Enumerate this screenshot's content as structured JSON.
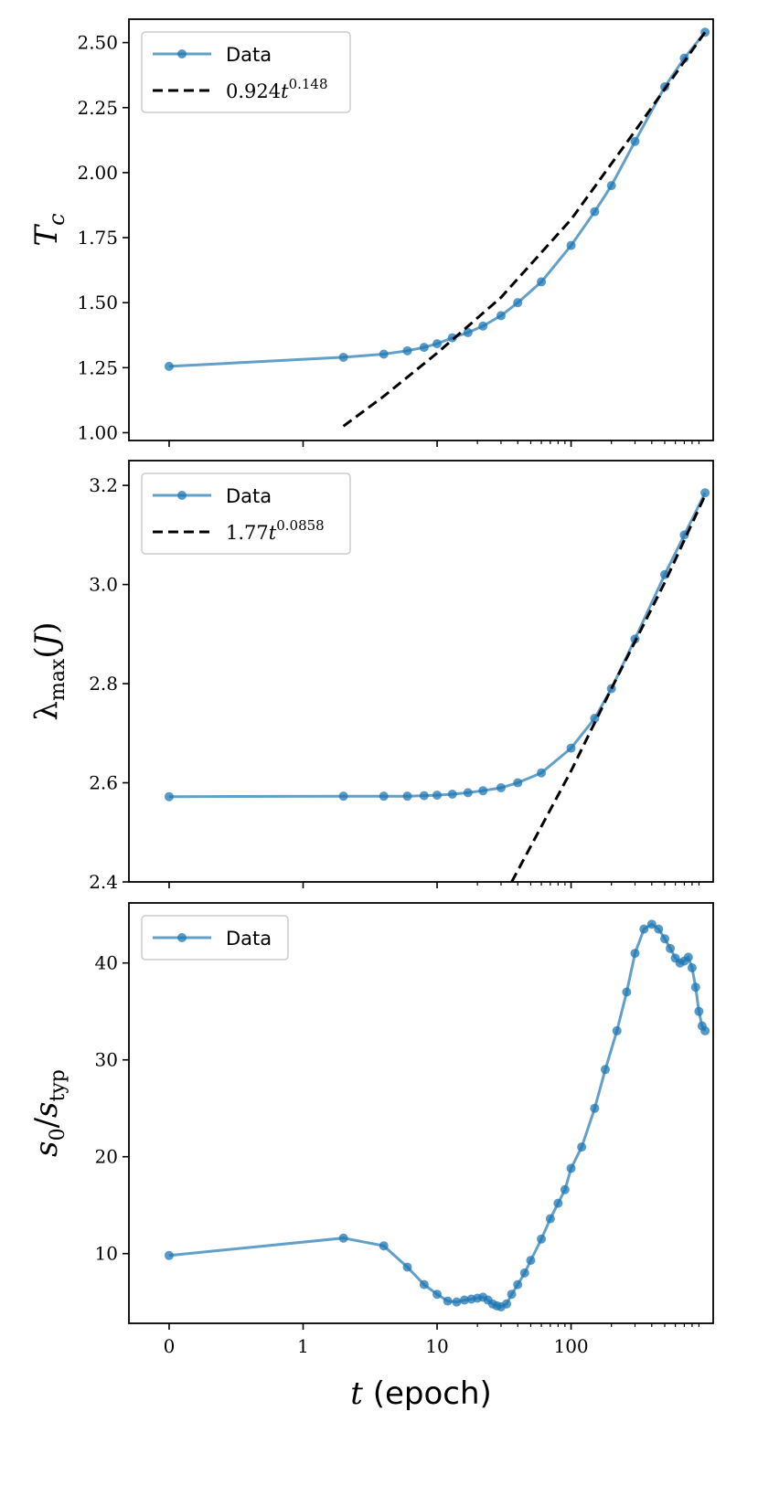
{
  "chart_data": [
    {
      "type": "line",
      "ylabel": "T_c",
      "yticks": [
        "1.00",
        "1.25",
        "1.50",
        "1.75",
        "2.00",
        "2.25",
        "2.50"
      ],
      "ytick_values": [
        1.0,
        1.25,
        1.5,
        1.75,
        2.0,
        2.25,
        2.5
      ],
      "ylim": [
        0.97,
        2.59
      ],
      "legend": {
        "placement": "top-left",
        "data_label": "Data",
        "fit_label": "0.924t^0.148",
        "fit_coef": "0.924",
        "fit_exp": "0.148"
      },
      "series": [
        {
          "name": "Data",
          "x": [
            0,
            2,
            4,
            6,
            8,
            10,
            13,
            17,
            22,
            30,
            40,
            60,
            100,
            150,
            200,
            300,
            500,
            700,
            1000
          ],
          "y": [
            1.255,
            1.29,
            1.302,
            1.315,
            1.328,
            1.342,
            1.365,
            1.385,
            1.41,
            1.45,
            1.5,
            1.58,
            1.72,
            1.85,
            1.95,
            2.12,
            2.33,
            2.44,
            2.54
          ]
        },
        {
          "name": "fit",
          "style": "dashed",
          "x": [
            2,
            4,
            10,
            30,
            100,
            300,
            1000
          ],
          "y": [
            1.025,
            1.14,
            1.306,
            1.52,
            1.82,
            2.16,
            2.54
          ]
        }
      ]
    },
    {
      "type": "line",
      "ylabel": "λ_max(J)",
      "yticks": [
        "2.4",
        "2.6",
        "2.8",
        "3.0",
        "3.2"
      ],
      "ytick_values": [
        2.4,
        2.6,
        2.8,
        3.0,
        3.2
      ],
      "ylim": [
        2.4,
        3.25
      ],
      "legend": {
        "placement": "top-left",
        "data_label": "Data",
        "fit_label": "1.77t^0.0858",
        "fit_coef": "1.77",
        "fit_exp": "0.0858"
      },
      "series": [
        {
          "name": "Data",
          "x": [
            0,
            2,
            4,
            6,
            8,
            10,
            13,
            17,
            22,
            30,
            40,
            60,
            100,
            150,
            200,
            300,
            500,
            700,
            1000
          ],
          "y": [
            2.572,
            2.573,
            2.573,
            2.573,
            2.574,
            2.575,
            2.577,
            2.58,
            2.584,
            2.59,
            2.6,
            2.62,
            2.67,
            2.73,
            2.79,
            2.89,
            3.02,
            3.1,
            3.185
          ]
        },
        {
          "name": "fit",
          "style": "dashed",
          "x": [
            36,
            100,
            200,
            500,
            1000
          ],
          "y": [
            2.4,
            2.624,
            2.79,
            3.004,
            3.18
          ]
        }
      ]
    },
    {
      "type": "line",
      "ylabel": "s_0/s_typ",
      "yticks": [
        "10",
        "20",
        "30",
        "40"
      ],
      "ytick_values": [
        10,
        20,
        30,
        40
      ],
      "ylim": [
        2.8,
        46.2
      ],
      "legend": {
        "placement": "top-left",
        "data_label": "Data"
      },
      "series": [
        {
          "name": "Data",
          "x": [
            0,
            2,
            4,
            6,
            8,
            10,
            12,
            14,
            16,
            18,
            20,
            22,
            24,
            26,
            28,
            30,
            33,
            36,
            40,
            45,
            50,
            60,
            70,
            80,
            90,
            100,
            120,
            150,
            180,
            220,
            260,
            300,
            350,
            400,
            450,
            500,
            550,
            600,
            650,
            700,
            750,
            800,
            850,
            900,
            950,
            1000
          ],
          "y": [
            9.8,
            11.6,
            10.8,
            8.6,
            6.8,
            5.8,
            5.1,
            5.0,
            5.2,
            5.3,
            5.4,
            5.5,
            5.2,
            4.8,
            4.6,
            4.5,
            4.8,
            5.8,
            6.8,
            8.0,
            9.3,
            11.5,
            13.6,
            15.2,
            16.6,
            18.8,
            21.0,
            25.0,
            29.0,
            33.0,
            37.0,
            41.0,
            43.5,
            44.0,
            43.5,
            42.5,
            41.5,
            40.5,
            40.0,
            40.2,
            40.6,
            39.5,
            37.5,
            35.0,
            33.5,
            33.0
          ]
        }
      ]
    }
  ],
  "x_axis": {
    "label": "(epoch)",
    "var": "t",
    "scale": "symlog",
    "linthresh": 1,
    "xticks": [
      "0",
      "1",
      "10",
      "100"
    ],
    "xtick_values": [
      0,
      1,
      10,
      100
    ],
    "xlim": [
      -0.3,
      1150
    ]
  },
  "colors": {
    "data": "#1f77b4",
    "fit": "#000000",
    "axes": "#000000"
  }
}
